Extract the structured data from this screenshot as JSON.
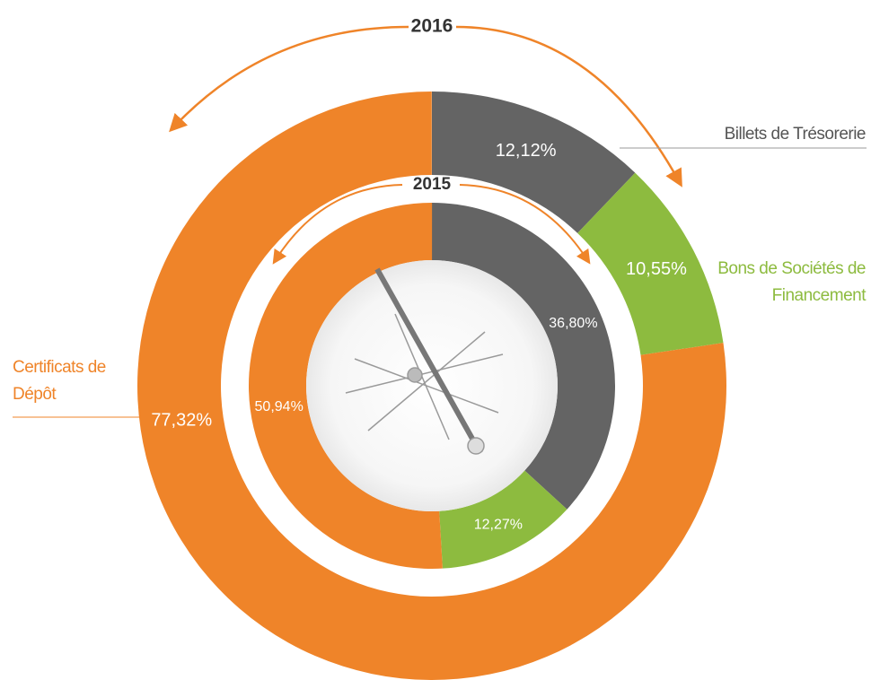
{
  "chart_data": {
    "type": "donut",
    "categories": [
      "Billets de Trésorerie",
      "Bons de Sociétés de Financement",
      "Certificats de Dépôt"
    ],
    "colors": [
      "#646464",
      "#8dbb3f",
      "#ef8429"
    ],
    "series": [
      {
        "name": "2016",
        "values": [
          12.12,
          10.55,
          77.32
        ],
        "value_labels": [
          "12,12%",
          "10,55%",
          "77,32%"
        ]
      },
      {
        "name": "2015",
        "values": [
          36.8,
          12.27,
          50.94
        ],
        "value_labels": [
          "36,80%",
          "12,27%",
          "50,94%"
        ]
      }
    ]
  }
}
